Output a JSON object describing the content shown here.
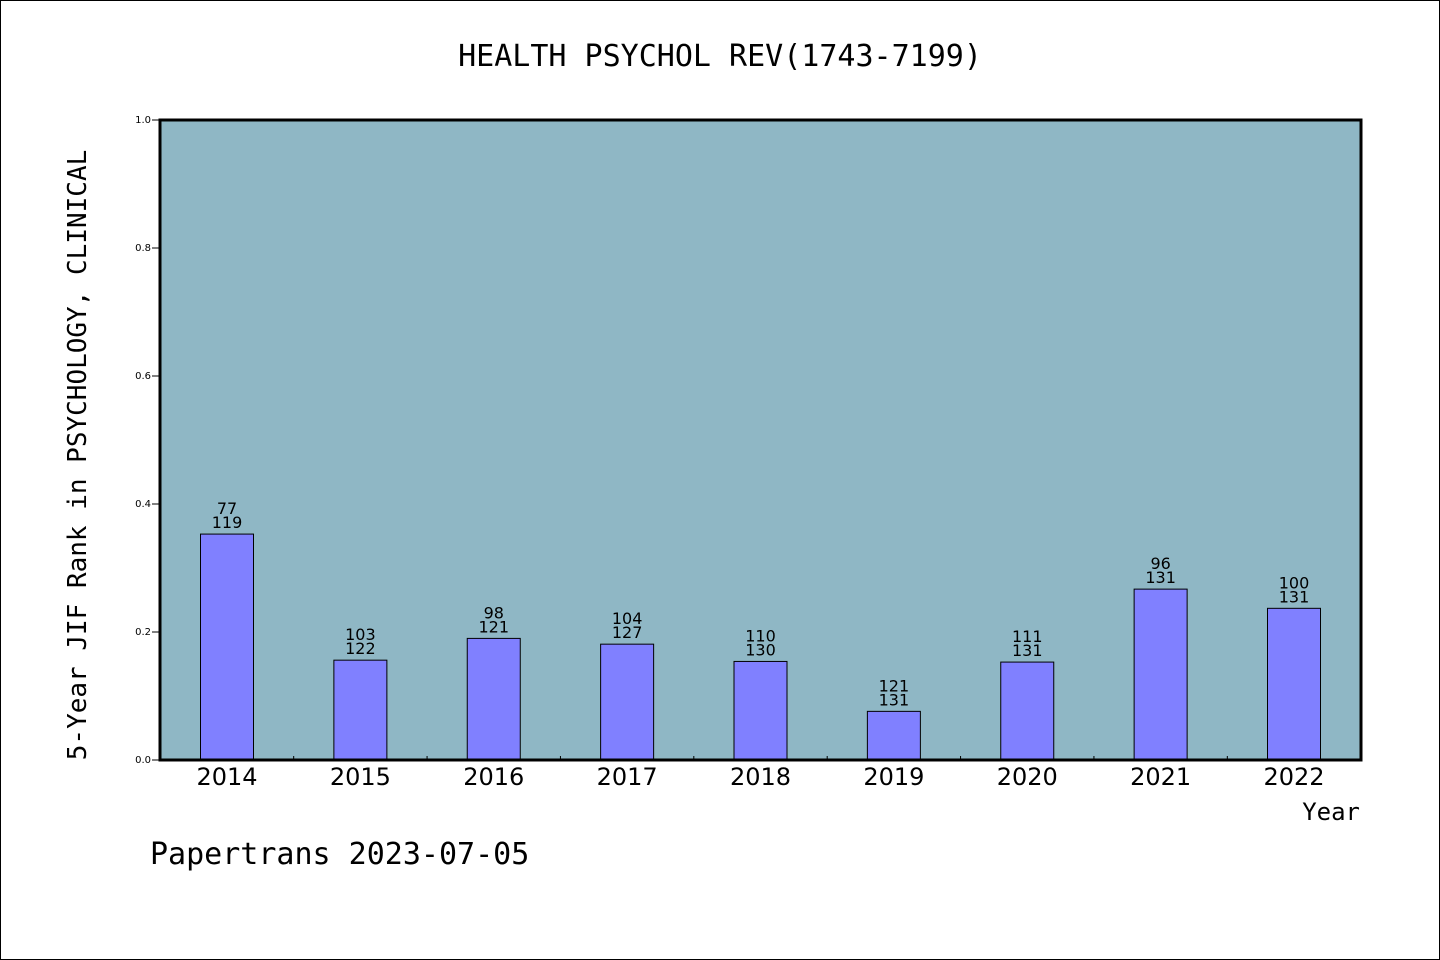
{
  "chart_data": {
    "type": "bar",
    "title": "HEALTH PSYCHOL REV(1743-7199)",
    "xlabel": "Year",
    "ylabel": "5-Year JIF Rank in PSYCHOLOGY, CLINICAL",
    "ylim": [
      0,
      1.0
    ],
    "yticks": [
      "0.0",
      "0.2",
      "0.4",
      "0.6",
      "0.8",
      "1.0"
    ],
    "ytick_values": [
      0.0,
      0.2,
      0.4,
      0.6,
      0.8,
      1.0
    ],
    "categories": [
      "2014",
      "2015",
      "2016",
      "2017",
      "2018",
      "2019",
      "2020",
      "2021",
      "2022"
    ],
    "values": [
      0.353,
      0.156,
      0.19,
      0.181,
      0.154,
      0.076,
      0.153,
      0.267,
      0.237
    ],
    "rank": [
      "77",
      "103",
      "98",
      "104",
      "110",
      "121",
      "111",
      "96",
      "100"
    ],
    "total": [
      "119",
      "122",
      "121",
      "127",
      "130",
      "131",
      "131",
      "131",
      "131"
    ],
    "grid": false,
    "colors": {
      "plot_background": "#8fb7c5",
      "bar_fill": "#8080ff",
      "bar_stroke": "#000000"
    }
  },
  "footer": "Papertrans 2023-07-05"
}
